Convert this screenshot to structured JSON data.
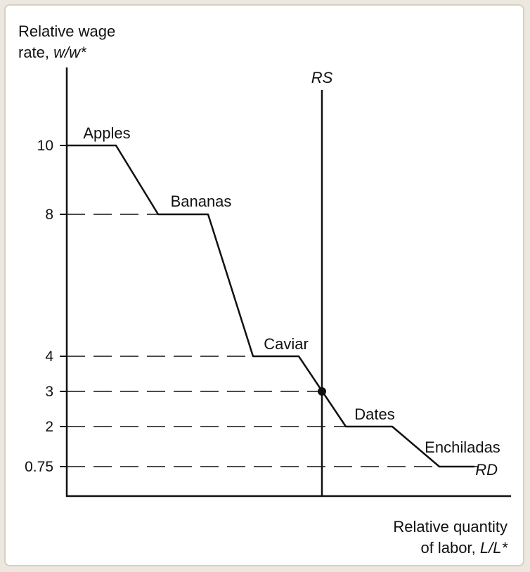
{
  "chart_data": {
    "type": "line",
    "ylabel_line1": "Relative wage",
    "ylabel_line2_prefix": "rate, ",
    "ylabel_line2_var": "w/w*",
    "xlabel_line1": "Relative quantity",
    "xlabel_line2_prefix": "of labor, ",
    "xlabel_line2_var": "L/L*",
    "y_ticks": [
      "10",
      "8",
      "4",
      "3",
      "2",
      "0.75"
    ],
    "goods": [
      {
        "name": "Apples",
        "wage": 10
      },
      {
        "name": "Bananas",
        "wage": 8
      },
      {
        "name": "Caviar",
        "wage": 4
      },
      {
        "name": "Dates",
        "wage": 2
      },
      {
        "name": "Enchiladas",
        "wage": 0.75
      }
    ],
    "curves": {
      "demand_label": "RD",
      "supply_label": "RS"
    },
    "equilibrium": {
      "wage": 3
    },
    "dashed_guides_at": [
      8,
      4,
      3,
      2,
      0.75
    ],
    "grid": false,
    "legend": "none"
  }
}
